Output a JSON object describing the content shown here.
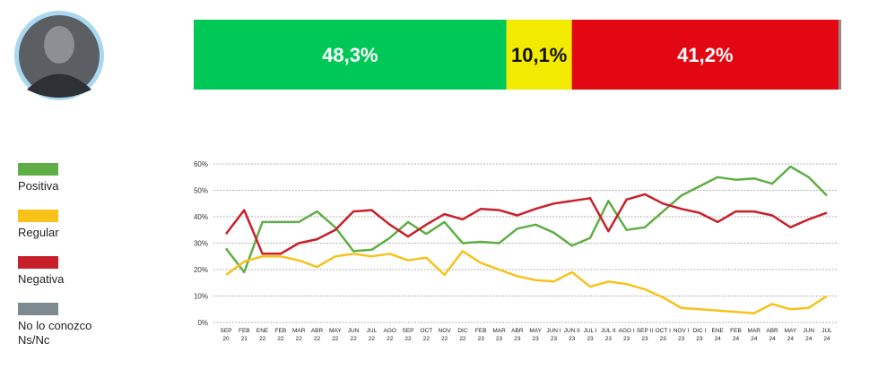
{
  "chart_data": [
    {
      "type": "bar",
      "orientation": "horizontal",
      "stacked": true,
      "xlim": [
        0,
        100
      ],
      "series": [
        {
          "color": "#00c857",
          "label_color": "#ffffff",
          "values": [
            48.3
          ],
          "value_labels": [
            "48,3%"
          ]
        },
        {
          "color": "#f2ea00",
          "label_color": "#111111",
          "values": [
            10.1
          ],
          "value_labels": [
            "10,1%"
          ]
        },
        {
          "color": "#e30613",
          "label_color": "#ffffff",
          "values": [
            41.2
          ],
          "value_labels": [
            "41,2%"
          ]
        },
        {
          "color": "#8a8a8a",
          "values": [
            0.4
          ]
        }
      ]
    },
    {
      "type": "line",
      "categories": [
        "SEP 20",
        "FEB 21",
        "ENE 22",
        "FEB 22",
        "MAR 22",
        "ABR 22",
        "MAY 22",
        "JUN 22",
        "JUL 22",
        "AGO 22",
        "SEP 22",
        "OCT 22",
        "NOV 22",
        "DIC 22",
        "FEB 23",
        "MAR 23",
        "ABR 23",
        "MAY 23",
        "JUN I 23",
        "JUN II 23",
        "JUL I 23",
        "JUL II 23",
        "AGO I 23",
        "SEP II 23",
        "OCT I 23",
        "NOV I 23",
        "DIC I 23",
        "ENE 24",
        "FEB 24",
        "MAR 24",
        "ABR 24",
        "MAY 24",
        "JUN 24",
        "JUL 24"
      ],
      "ylim": [
        0,
        60
      ],
      "yticks": [
        {
          "value": 0,
          "label": "0%"
        },
        {
          "value": 10,
          "label": "10%"
        },
        {
          "value": 20,
          "label": "20%"
        },
        {
          "value": 30,
          "label": "30%"
        },
        {
          "value": 40,
          "label": "40%"
        },
        {
          "value": 50,
          "label": "50%"
        },
        {
          "value": 60,
          "label": "60%"
        }
      ],
      "grid": true,
      "series": [
        {
          "color": "#5fae45",
          "values": [
            28,
            19,
            38,
            38,
            38,
            42,
            36,
            27,
            27.5,
            32,
            38,
            33.5,
            38,
            30,
            30.5,
            30,
            35.5,
            37,
            34,
            29,
            32,
            46,
            35,
            36,
            42,
            48,
            51.5,
            55,
            54,
            54.5,
            52.5,
            59,
            55,
            48
          ]
        },
        {
          "color": "#f6c21a",
          "values": [
            18,
            23,
            25,
            25,
            23.5,
            21,
            25,
            26,
            25,
            26,
            23.5,
            24.5,
            18,
            27,
            22.5,
            20,
            17.5,
            16,
            15.5,
            19,
            13.5,
            15.5,
            14.5,
            12.5,
            9.5,
            5.5,
            5,
            4.5,
            4,
            3.5,
            7,
            5,
            5.5,
            10
          ]
        },
        {
          "color": "#c8202a",
          "values": [
            33.5,
            42.5,
            26,
            26,
            30,
            31.5,
            35,
            42,
            42.5,
            37,
            32.5,
            37,
            41,
            39,
            43,
            42.5,
            40.5,
            43,
            45,
            46,
            47,
            34.5,
            46.5,
            48.5,
            45,
            43,
            41.5,
            38,
            42,
            42,
            40.5,
            36,
            39,
            41.5
          ]
        }
      ]
    }
  ],
  "legend": [
    {
      "name": "Positiva",
      "color": "#5fae45"
    },
    {
      "name": "Regular",
      "color": "#f6c21a"
    },
    {
      "name": "Negativa",
      "color": "#c8202a"
    },
    {
      "name": "No lo conozco Ns/Nc",
      "color": "#7d8a90"
    }
  ]
}
